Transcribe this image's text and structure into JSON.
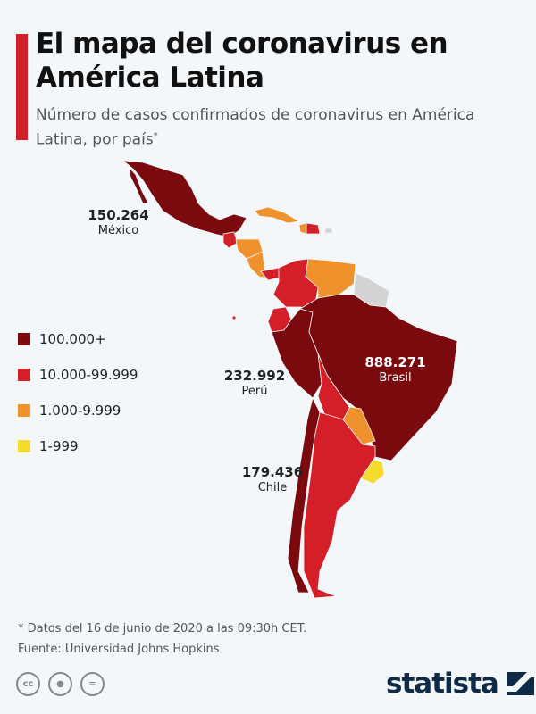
{
  "header": {
    "title": "El mapa del coronavirus en América Latina",
    "subtitle": "Número de casos confirmados de coronavirus en América Latina, por país",
    "subtitle_marker": "*"
  },
  "legend": [
    {
      "label": "100.000+",
      "color": "#7a0a0e"
    },
    {
      "label": "10.000-99.999",
      "color": "#d51f28"
    },
    {
      "label": "1.000-9.999",
      "color": "#ef922b"
    },
    {
      "label": "1-999",
      "color": "#f5dc2a"
    }
  ],
  "no_data_color": "#d3d3d3",
  "callouts": [
    {
      "country": "México",
      "value": "150.264"
    },
    {
      "country": "Perú",
      "value": "232.992"
    },
    {
      "country": "Brasil",
      "value": "888.271"
    },
    {
      "country": "Chile",
      "value": "179.436"
    }
  ],
  "footer": {
    "note": "* Datos del 16 de junio de 2020 a las 09:30h CET.",
    "source": "Fuente: Universidad Johns Hopkins",
    "license_icons": [
      "cc-icon",
      "attribution-icon",
      "no-derivatives-icon"
    ],
    "brand": "statista"
  }
}
